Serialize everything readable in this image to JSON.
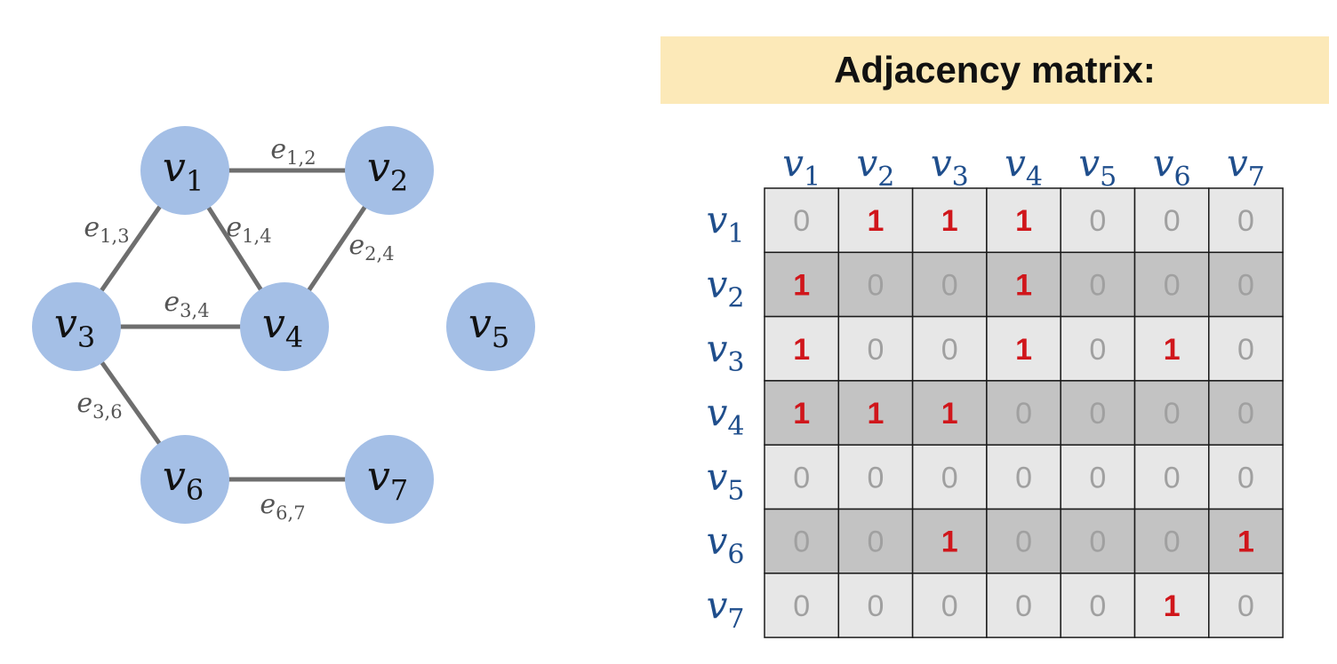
{
  "graph": {
    "nodes": [
      {
        "id": "v1",
        "base": "v",
        "sub": "1"
      },
      {
        "id": "v2",
        "base": "v",
        "sub": "2"
      },
      {
        "id": "v3",
        "base": "v",
        "sub": "3"
      },
      {
        "id": "v4",
        "base": "v",
        "sub": "4"
      },
      {
        "id": "v5",
        "base": "v",
        "sub": "5"
      },
      {
        "id": "v6",
        "base": "v",
        "sub": "6"
      },
      {
        "id": "v7",
        "base": "v",
        "sub": "7"
      }
    ],
    "edges": [
      {
        "from": "v1",
        "to": "v2",
        "base": "e",
        "sub": "1,2"
      },
      {
        "from": "v1",
        "to": "v3",
        "base": "e",
        "sub": "1,3"
      },
      {
        "from": "v1",
        "to": "v4",
        "base": "e",
        "sub": "1,4"
      },
      {
        "from": "v2",
        "to": "v4",
        "base": "e",
        "sub": "2,4"
      },
      {
        "from": "v3",
        "to": "v4",
        "base": "e",
        "sub": "3,4"
      },
      {
        "from": "v3",
        "to": "v6",
        "base": "e",
        "sub": "3,6"
      },
      {
        "from": "v6",
        "to": "v7",
        "base": "e",
        "sub": "6,7"
      }
    ],
    "colors": {
      "node_fill": "#a4bfe6",
      "edge": "#6e6e6e",
      "node_text": "#111111",
      "edge_label": "#555555"
    }
  },
  "matrix": {
    "title": "Adjacency matrix:",
    "labels": [
      {
        "base": "v",
        "sub": "1"
      },
      {
        "base": "v",
        "sub": "2"
      },
      {
        "base": "v",
        "sub": "3"
      },
      {
        "base": "v",
        "sub": "4"
      },
      {
        "base": "v",
        "sub": "5"
      },
      {
        "base": "v",
        "sub": "6"
      },
      {
        "base": "v",
        "sub": "7"
      }
    ],
    "values": [
      [
        0,
        1,
        1,
        1,
        0,
        0,
        0
      ],
      [
        1,
        0,
        0,
        1,
        0,
        0,
        0
      ],
      [
        1,
        0,
        0,
        1,
        0,
        1,
        0
      ],
      [
        1,
        1,
        1,
        0,
        0,
        0,
        0
      ],
      [
        0,
        0,
        0,
        0,
        0,
        0,
        0
      ],
      [
        0,
        0,
        1,
        0,
        0,
        0,
        1
      ],
      [
        0,
        0,
        0,
        0,
        0,
        1,
        0
      ]
    ],
    "colors": {
      "row_light": "#e7e7e7",
      "row_dark": "#c3c3c3",
      "one": "#d0161b",
      "zero": "#a0a0a0",
      "label": "#1f4e8c",
      "header_bg": "#fce9b8"
    }
  }
}
